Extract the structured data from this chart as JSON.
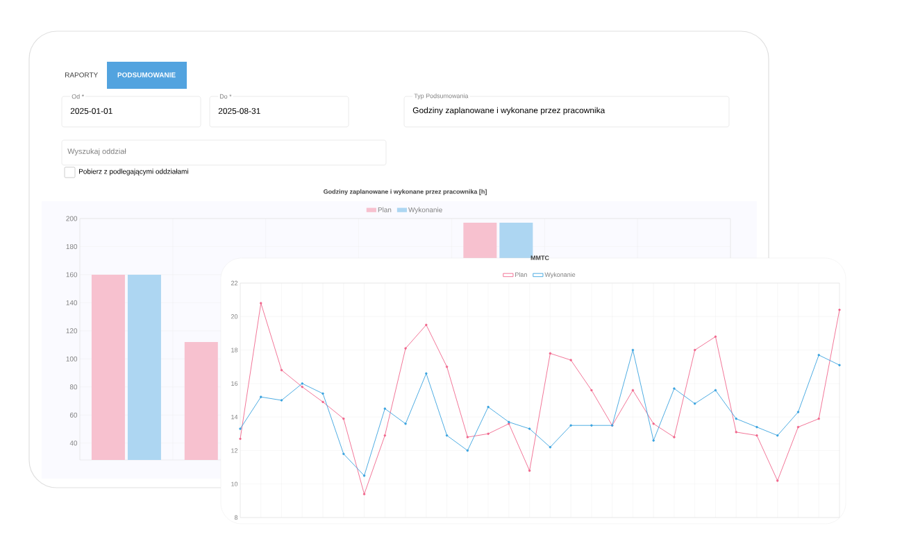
{
  "chart_data": [
    {
      "type": "bar",
      "title": "Godziny zaplanowane i wykonane przez pracownika [h]",
      "categories": [
        null,
        null,
        null,
        null,
        null,
        null,
        null
      ],
      "series": [
        {
          "name": "Plan",
          "color": "#f7c1cf",
          "values": [
            160,
            112,
            null,
            null,
            197,
            null,
            null
          ]
        },
        {
          "name": "Wykonanie",
          "color": "#add6f2",
          "values": [
            160,
            null,
            null,
            null,
            197,
            null,
            null
          ]
        }
      ],
      "ylim": [
        28,
        200
      ],
      "yticks": [
        40,
        60,
        80,
        100,
        120,
        140,
        160,
        180,
        200
      ],
      "grid": true,
      "legend": "top",
      "annotations": [
        "RAPORTY",
        "PODSUMOWANIE",
        "Od *",
        "2025-01-01",
        "Do *",
        "2025-08-31",
        "Typ Podsumowania",
        "Godziny zaplanowane i wykonane przez pracownika",
        "Wyszukaj oddział",
        "Pobierz z podlegającymi oddziałami"
      ]
    },
    {
      "type": "line",
      "title": "MMTC",
      "categories": [
        null,
        null,
        null,
        null,
        null,
        null,
        null,
        null,
        null,
        null,
        null,
        null,
        null,
        null,
        null,
        null,
        null,
        null,
        null,
        null,
        null,
        null,
        null,
        null,
        null,
        null,
        null,
        null,
        null,
        null
      ],
      "series": [
        {
          "name": "Plan",
          "color": "#f0678c",
          "values": [
            12.7,
            20.8,
            16.8,
            15.8,
            14.9,
            13.9,
            9.4,
            12.9,
            18.1,
            19.5,
            17.0,
            12.8,
            13.0,
            13.6,
            10.8,
            17.8,
            17.4,
            15.6,
            13.5,
            15.6,
            13.6,
            12.8,
            18.0,
            18.8,
            13.1,
            12.9,
            10.2,
            13.4,
            13.9,
            20.4
          ]
        },
        {
          "name": "Wykonanie",
          "color": "#3aa3df",
          "values": [
            13.3,
            15.2,
            15.0,
            16.0,
            15.4,
            11.8,
            10.5,
            14.5,
            13.6,
            16.6,
            12.9,
            12.0,
            14.6,
            13.7,
            13.3,
            12.2,
            13.5,
            13.5,
            13.5,
            18.0,
            12.6,
            15.7,
            14.8,
            15.6,
            13.9,
            13.4,
            12.9,
            14.3,
            17.7,
            17.1
          ]
        }
      ],
      "ylim": [
        8,
        22
      ],
      "yticks": [
        8,
        10,
        12,
        14,
        16,
        18,
        20,
        22
      ],
      "grid": true,
      "legend": "top",
      "marker": "circle"
    }
  ]
}
